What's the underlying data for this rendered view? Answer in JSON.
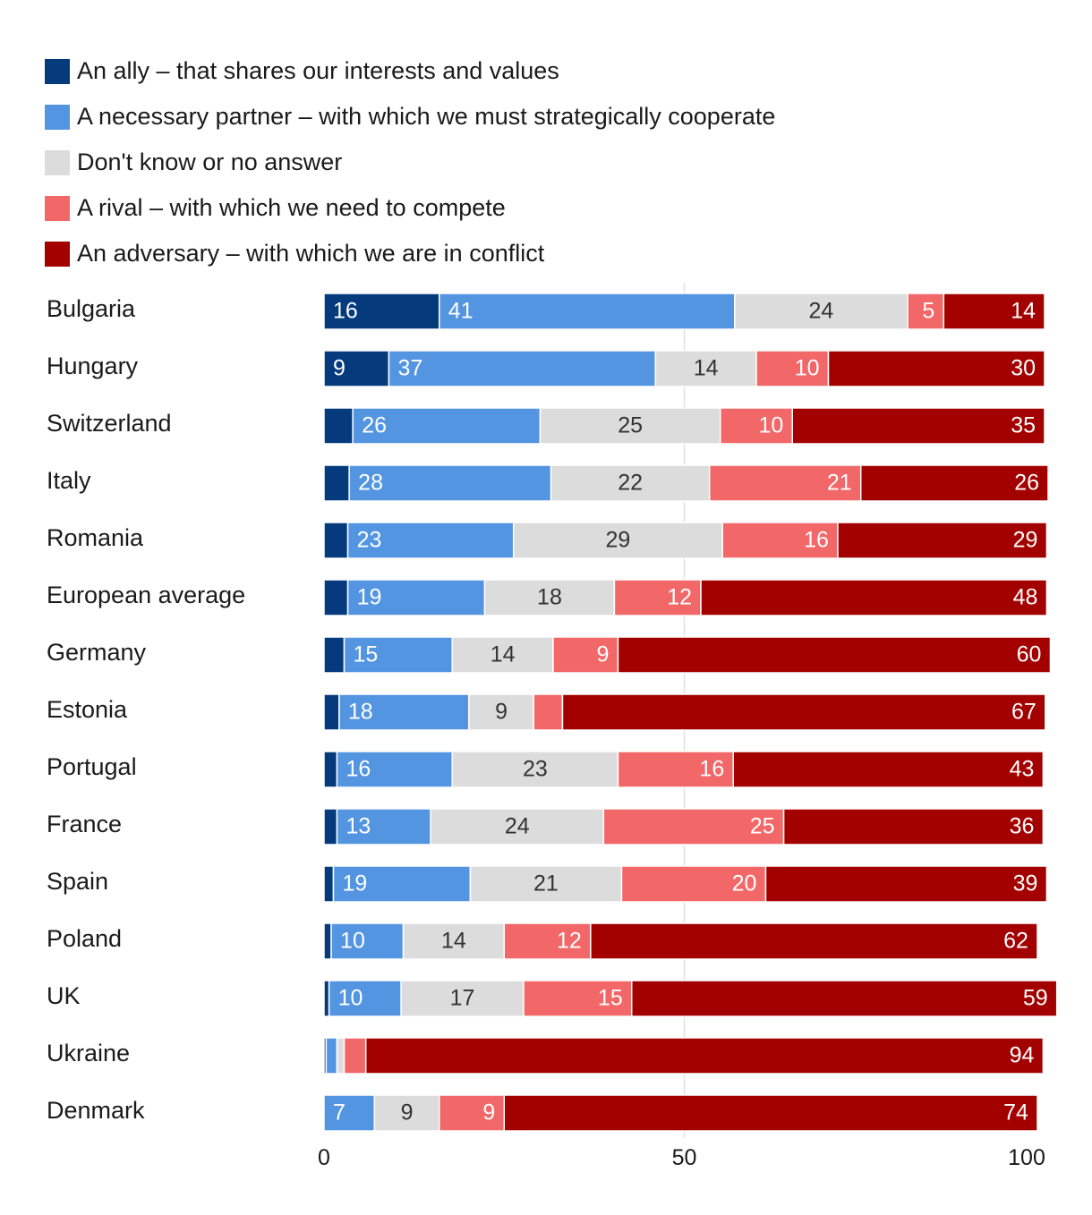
{
  "chart_data": {
    "type": "bar",
    "orientation": "horizontal-stacked",
    "xlim": [
      0,
      100
    ],
    "xticks": [
      0,
      50,
      100
    ],
    "gridlines": [
      50
    ],
    "legend_position": "top-left",
    "series": [
      {
        "name": "An ally – that shares our interests and values",
        "color": "#053b7d",
        "text_color": "#ffffff",
        "values": [
          16,
          9,
          4,
          3.5,
          3.3,
          3.3,
          2.8,
          2.1,
          1.8,
          1.8,
          1.3,
          1,
          0.7,
          0.3,
          0
        ],
        "labels": [
          "16",
          "9",
          "",
          "",
          "",
          "",
          "",
          "",
          "",
          "",
          "",
          "",
          "",
          "",
          ""
        ]
      },
      {
        "name": "A necessary partner – with which we must strategically cooperate",
        "color": "#5495e1",
        "text_color": "#ffffff",
        "values": [
          41,
          37,
          26,
          28,
          23,
          19,
          15,
          18,
          16,
          13,
          19,
          10,
          10,
          1.5,
          7
        ],
        "labels": [
          "41",
          "37",
          "26",
          "28",
          "23",
          "19",
          "15",
          "18",
          "16",
          "13",
          "19",
          "10",
          "10",
          "",
          "7"
        ]
      },
      {
        "name": "Don't know or no answer",
        "color": "#dcdcdc",
        "text_color": "#333333",
        "values": [
          24,
          14,
          25,
          22,
          29,
          18,
          14,
          9,
          23,
          24,
          21,
          14,
          17,
          1,
          9
        ],
        "labels": [
          "24",
          "14",
          "25",
          "22",
          "29",
          "18",
          "14",
          "9",
          "23",
          "24",
          "21",
          "14",
          "17",
          "",
          "9"
        ]
      },
      {
        "name": "A rival – with which we need to compete",
        "color": "#f26767",
        "text_color": "#ffffff",
        "values": [
          5,
          10,
          10,
          21,
          16,
          12,
          9,
          4,
          16,
          25,
          20,
          12,
          15,
          3,
          9
        ],
        "labels": [
          "5",
          "10",
          "10",
          "21",
          "16",
          "12",
          "9",
          "",
          "16",
          "25",
          "20",
          "12",
          "15",
          "",
          "9"
        ]
      },
      {
        "name": "An adversary – with which we are in conflict",
        "color": "#a30000",
        "text_color": "#ffffff",
        "values": [
          14,
          30,
          35,
          26,
          29,
          48,
          60,
          67,
          43,
          36,
          39,
          62,
          59,
          94,
          74
        ],
        "labels": [
          "14",
          "30",
          "35",
          "26",
          "29",
          "48",
          "60",
          "67",
          "43",
          "36",
          "39",
          "62",
          "59",
          "94",
          "74"
        ]
      }
    ],
    "categories": [
      "Bulgaria",
      "Hungary",
      "Switzerland",
      "Italy",
      "Romania",
      "European average",
      "Germany",
      "Estonia",
      "Portugal",
      "France",
      "Spain",
      "Poland",
      "UK",
      "Ukraine",
      "Denmark"
    ],
    "title": "",
    "xlabel": "",
    "ylabel": ""
  }
}
